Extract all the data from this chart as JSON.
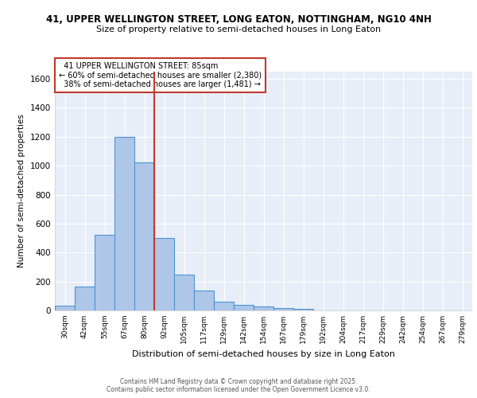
{
  "title_line1": "41, UPPER WELLINGTON STREET, LONG EATON, NOTTINGHAM, NG10 4NH",
  "title_line2": "Size of property relative to semi-detached houses in Long Eaton",
  "xlabel": "Distribution of semi-detached houses by size in Long Eaton",
  "ylabel": "Number of semi-detached properties",
  "categories": [
    "30sqm",
    "42sqm",
    "55sqm",
    "67sqm",
    "80sqm",
    "92sqm",
    "105sqm",
    "117sqm",
    "129sqm",
    "142sqm",
    "154sqm",
    "167sqm",
    "179sqm",
    "192sqm",
    "204sqm",
    "217sqm",
    "229sqm",
    "242sqm",
    "254sqm",
    "267sqm",
    "279sqm"
  ],
  "values": [
    35,
    165,
    525,
    1200,
    1025,
    500,
    245,
    140,
    60,
    38,
    25,
    15,
    10,
    0,
    0,
    0,
    0,
    0,
    0,
    0,
    0
  ],
  "bar_color": "#aec6e8",
  "bar_edge_color": "#4d94d5",
  "property_label": "41 UPPER WELLINGTON STREET: 85sqm",
  "pct_smaller": 60,
  "n_smaller": 2380,
  "pct_larger": 38,
  "n_larger": 1481,
  "vline_color": "#c0392b",
  "vline_position": 4.5,
  "annotation_box_edge_color": "#c0392b",
  "ylim": [
    0,
    1650
  ],
  "yticks": [
    0,
    200,
    400,
    600,
    800,
    1000,
    1200,
    1400,
    1600
  ],
  "bg_color": "#e8eef8",
  "grid_color": "#ffffff",
  "footer_line1": "Contains HM Land Registry data © Crown copyright and database right 2025.",
  "footer_line2": "Contains public sector information licensed under the Open Government Licence v3.0."
}
